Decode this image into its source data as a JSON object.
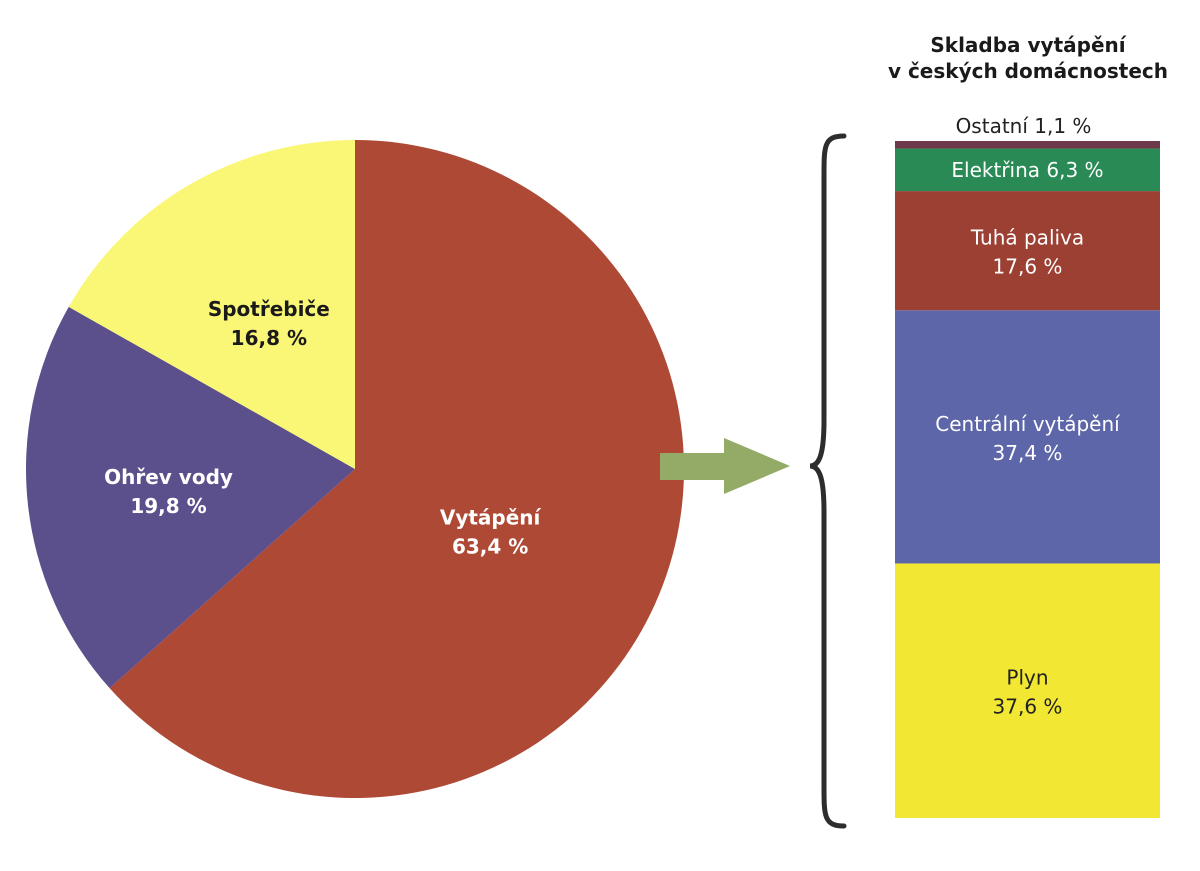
{
  "chart_data": [
    {
      "type": "pie",
      "slices": [
        {
          "label": "Vytápění",
          "value_label": "63,4 %",
          "value": 63.4,
          "color": "#AE4935",
          "text_color": "#ffffff"
        },
        {
          "label": "Ohřev vody",
          "value_label": "19,8 %",
          "value": 19.8,
          "color": "#5B4F8C",
          "text_color": "#ffffff"
        },
        {
          "label": "Spotřebiče",
          "value_label": "16,8 %",
          "value": 16.8,
          "color": "#FAF777",
          "text_color": "#1a1a1a"
        }
      ]
    },
    {
      "type": "bar",
      "stacked": true,
      "title_lines": [
        "Skladba vytápění",
        "v českých domácnostech"
      ],
      "segments": [
        {
          "label": "Plyn",
          "value_label": "37,6 %",
          "value": 37.6,
          "color": "#F2E733",
          "text_color": "#222222"
        },
        {
          "label": "Centrální vytápění",
          "value_label": "37,4 %",
          "value": 37.4,
          "color": "#5C66A8",
          "text_color": "#ffffff"
        },
        {
          "label": "Tuhá paliva",
          "value_label": "17,6 %",
          "value": 17.6,
          "color": "#9C4034",
          "text_color": "#ffffff"
        },
        {
          "label": "Elektřina",
          "value_label": "6,3 %",
          "value": 6.3,
          "color": "#2A8A55",
          "text_color": "#ffffff"
        },
        {
          "label": "Ostatní",
          "value_label": "1,1 %",
          "value": 1.1,
          "color": "#6E3A4A",
          "text_color": "#222222"
        }
      ]
    }
  ],
  "colors": {
    "arrow": "#93AB66",
    "brace": "#2d2d2d"
  }
}
